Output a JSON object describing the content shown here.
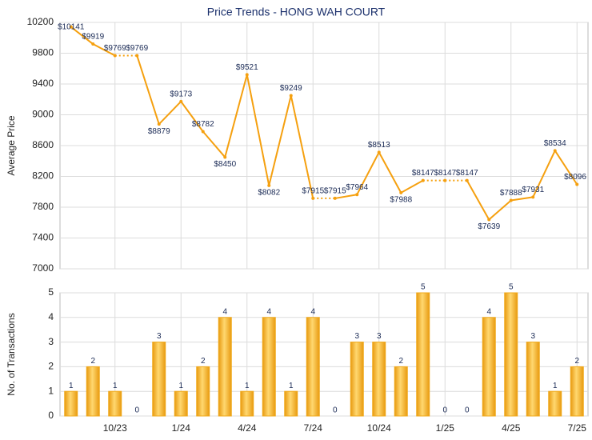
{
  "chart_data": [
    {
      "type": "line",
      "title": "Price Trends - HONG WAH COURT",
      "y_label": "Average Price",
      "color": "#f5a00f",
      "values": [
        10141,
        9919,
        9769,
        9769,
        8879,
        9173,
        8782,
        8450,
        9521,
        8082,
        9249,
        7915,
        7915,
        7964,
        8513,
        7988,
        8147,
        8147,
        8147,
        7639,
        7888,
        7931,
        8534,
        8096
      ],
      "value_labels": [
        "$10141",
        "$9919",
        "$9769",
        "$9769",
        "$8879",
        "$9173",
        "$8782",
        "$8450",
        "$9521",
        "$8082",
        "$9249",
        "$7915",
        "$7915",
        "$7964",
        "$8513",
        "$7988",
        "$8147",
        "$8147",
        "$8147",
        "$7639",
        "$7888",
        "$7931",
        "$8534",
        "$8096"
      ],
      "ylim": [
        7000,
        10200
      ],
      "yticks": [
        7000,
        7400,
        7800,
        8200,
        8600,
        9000,
        9400,
        9800,
        10200
      ],
      "grid": true
    },
    {
      "type": "bar",
      "y_label": "No. of Transactions",
      "color": "#f0a818",
      "categories": [
        null,
        null,
        "10/23",
        null,
        null,
        "1/24",
        null,
        null,
        "4/24",
        null,
        null,
        "7/24",
        null,
        null,
        "10/24",
        null,
        null,
        "1/25",
        null,
        null,
        "4/25",
        null,
        null,
        "7/25"
      ],
      "values": [
        1,
        2,
        1,
        0,
        3,
        1,
        2,
        4,
        1,
        4,
        1,
        4,
        0,
        3,
        3,
        2,
        5,
        0,
        0,
        4,
        5,
        3,
        1,
        2
      ],
      "ylim": [
        0,
        5
      ],
      "yticks": [
        0,
        1,
        2,
        3,
        4,
        5
      ],
      "grid": true
    }
  ]
}
